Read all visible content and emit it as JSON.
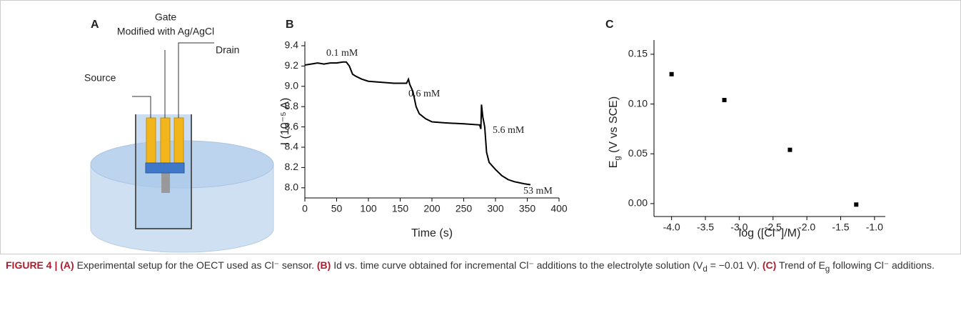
{
  "diagram": {
    "panel_label": "A",
    "gate": "Gate",
    "gate_note": "Modified with Ag/AgCl",
    "drain": "Drain",
    "source": "Source"
  },
  "chart_data": [
    {
      "type": "line",
      "title": "B",
      "x_label": "Time (s)",
      "y_label": "I (10⁻⁵ A)",
      "x": [
        0,
        10,
        20,
        30,
        40,
        50,
        60,
        65,
        70,
        75,
        80,
        90,
        100,
        120,
        140,
        160,
        163,
        165,
        170,
        175,
        180,
        190,
        200,
        220,
        250,
        275,
        277,
        278,
        280,
        283,
        286,
        290,
        300,
        310,
        320,
        330,
        345,
        355
      ],
      "series": [
        {
          "color": "#000000",
          "values": [
            9.21,
            9.22,
            9.23,
            9.22,
            9.23,
            9.23,
            9.24,
            9.24,
            9.2,
            9.12,
            9.1,
            9.07,
            9.05,
            9.04,
            9.03,
            9.03,
            9.07,
            9.02,
            8.95,
            8.8,
            8.73,
            8.68,
            8.65,
            8.64,
            8.63,
            8.62,
            8.58,
            8.82,
            8.7,
            8.6,
            8.35,
            8.25,
            8.18,
            8.12,
            8.08,
            8.06,
            8.04,
            8.03
          ]
        }
      ],
      "annotations": [
        "0.1 mM",
        "0.6 mM",
        "5.6 mM",
        "53 mM"
      ],
      "xlim": [
        0,
        400
      ],
      "xticks": [
        0,
        50,
        100,
        150,
        200,
        250,
        300,
        350,
        400
      ],
      "ylim": [
        7.9,
        9.4
      ],
      "yticks": [
        {
          "value": 8,
          "label": "8.0"
        },
        8.2,
        8.4,
        8.6,
        8.8,
        {
          "value": 9,
          "label": "9.0"
        },
        9.2,
        9.4
      ]
    },
    {
      "type": "scatter",
      "title": "C",
      "x_label": "log ([Cl⁻]/M)",
      "y_label": "E",
      "y_label_sub": "g",
      "y_label_rest": " (V vs SCE)",
      "x": [
        -4.0,
        -3.22,
        -2.25,
        -1.27
      ],
      "values": [
        0.13,
        0.104,
        0.054,
        -0.001
      ],
      "color": "#000000",
      "xlim": [
        -4.26,
        -0.84
      ],
      "xticks": [
        {
          "value": -4,
          "label": "-4.0"
        },
        -3.5,
        {
          "value": -3,
          "label": "-3.0"
        },
        -2.5,
        {
          "value": -2,
          "label": "-2.0"
        },
        -1.5,
        {
          "value": -1,
          "label": "-1.0"
        }
      ],
      "ylim": [
        -0.013,
        0.16
      ],
      "yticks": [
        {
          "value": 0,
          "label": "0.00"
        },
        0.05,
        {
          "value": 0.1,
          "label": "0.10"
        },
        0.15
      ]
    }
  ],
  "caption": [
    {
      "text": "FIGURE 4 | ",
      "bold": true
    },
    {
      "text": "(A)",
      "bold": true
    },
    {
      "text": " Experimental setup for the OECT used as Cl⁻ sensor. "
    },
    {
      "text": "(B)",
      "bold": true
    },
    {
      "text": " Id vs. time curve obtained for incremental Cl⁻ additions to the electrolyte solution (V"
    },
    {
      "text": "d",
      "sub": true
    },
    {
      "text": " = −0.01 V). "
    },
    {
      "text": "(C)",
      "bold": true
    },
    {
      "text": " Trend of E"
    },
    {
      "text": "g",
      "sub": true
    },
    {
      "text": " following Cl⁻ additions."
    }
  ]
}
